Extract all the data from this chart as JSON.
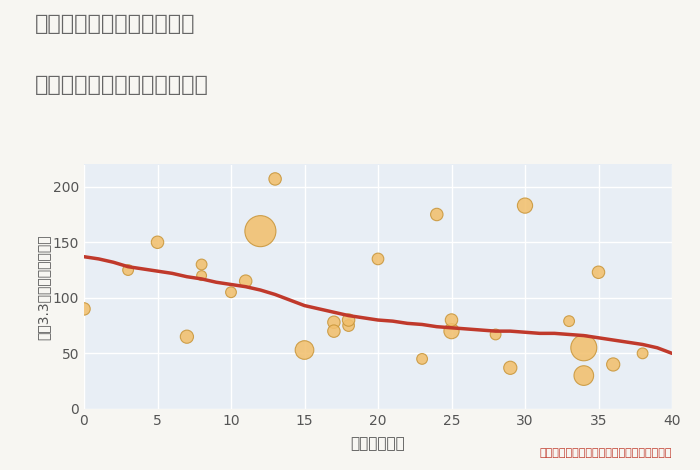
{
  "title_line1": "千葉県夷隅郡御宿町上布施",
  "title_line2": "築年数別中古マンション価格",
  "xlabel": "築年数（年）",
  "ylabel": "坪（3.3㎡）単価（万円）",
  "annotation": "円の大きさは、取引のあった物件面積を示す",
  "bg_color": "#f7f6f2",
  "plot_bg_color": "#e8eef5",
  "scatter_color": "#f2c06e",
  "scatter_edgecolor": "#c9963a",
  "line_color": "#c0392b",
  "grid_color": "#ffffff",
  "title_color": "#666666",
  "annotation_color": "#c0392b",
  "xlim": [
    0,
    40
  ],
  "ylim": [
    0,
    220
  ],
  "xticks": [
    0,
    5,
    10,
    15,
    20,
    25,
    30,
    35,
    40
  ],
  "yticks": [
    0,
    50,
    100,
    150,
    200
  ],
  "scatter_x": [
    0,
    3,
    5,
    7,
    8,
    8,
    10,
    11,
    12,
    13,
    15,
    17,
    17,
    18,
    18,
    20,
    23,
    24,
    25,
    25,
    28,
    29,
    30,
    33,
    34,
    34,
    35,
    36,
    38
  ],
  "scatter_y": [
    90,
    125,
    150,
    65,
    130,
    120,
    105,
    115,
    160,
    207,
    53,
    78,
    70,
    75,
    80,
    135,
    45,
    175,
    70,
    80,
    67,
    37,
    183,
    79,
    55,
    30,
    123,
    40,
    50
  ],
  "scatter_size": [
    80,
    60,
    80,
    90,
    60,
    50,
    60,
    80,
    500,
    80,
    180,
    80,
    80,
    70,
    80,
    70,
    60,
    80,
    120,
    80,
    60,
    90,
    120,
    60,
    350,
    200,
    80,
    90,
    60
  ],
  "trend_x": [
    0,
    1,
    2,
    3,
    4,
    5,
    6,
    7,
    8,
    9,
    10,
    11,
    12,
    13,
    14,
    15,
    16,
    17,
    18,
    19,
    20,
    21,
    22,
    23,
    24,
    25,
    26,
    27,
    28,
    29,
    30,
    31,
    32,
    33,
    34,
    35,
    36,
    37,
    38,
    39,
    40
  ],
  "trend_y": [
    137,
    135,
    132,
    128,
    126,
    124,
    122,
    119,
    117,
    114,
    112,
    110,
    107,
    103,
    98,
    93,
    90,
    87,
    84,
    82,
    80,
    79,
    77,
    76,
    74,
    73,
    72,
    71,
    70,
    70,
    69,
    68,
    68,
    67,
    66,
    64,
    62,
    60,
    58,
    55,
    50
  ]
}
